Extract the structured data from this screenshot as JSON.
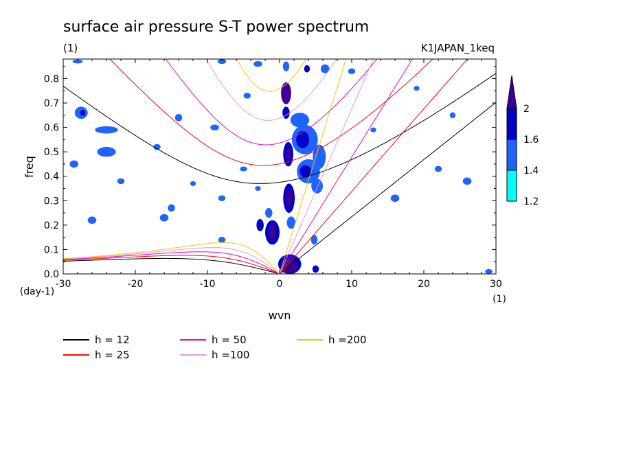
{
  "chart_data": {
    "type": "contour",
    "title": "surface air pressure S-T power spectrum",
    "subtitle_left": "(1)",
    "subtitle_right": "K1JAPAN_1keq",
    "xlabel": "wvn",
    "ylabel": "freq",
    "x_unit": "(1)",
    "y_unit": "(day-1)",
    "xlim": [
      -30,
      30
    ],
    "ylim": [
      0,
      0.88
    ],
    "x_ticks": [
      -30,
      -20,
      -10,
      0,
      10,
      20,
      30
    ],
    "x_tick_labels": [
      "-30",
      "-20",
      "-10",
      "0",
      "10",
      "20",
      "30"
    ],
    "y_ticks": [
      0.0,
      0.1,
      0.2,
      0.3,
      0.4,
      0.5,
      0.6,
      0.7,
      0.8
    ],
    "y_tick_labels": [
      "0.0",
      "0.1",
      "0.2",
      "0.3",
      "0.4",
      "0.5",
      "0.6",
      "0.7",
      "0.8"
    ],
    "colorbar": {
      "levels": [
        1.2,
        1.4,
        1.6,
        2
      ],
      "labels": [
        "1.2",
        "1.4",
        "1.6",
        "2"
      ],
      "colors": [
        "#00ffff",
        "#1e64ff",
        "#0000c8",
        "#3c0096"
      ]
    },
    "dispersion_curves": [
      {
        "label": "h = 12",
        "h": 12,
        "color": "#000000"
      },
      {
        "label": "h = 25",
        "h": 25,
        "color": "#ff0000"
      },
      {
        "label": "h = 50",
        "h": 50,
        "color": "#e600c8"
      },
      {
        "label": "h =100",
        "h": 100,
        "color": "#e696e6"
      },
      {
        "label": "h =200",
        "h": 200,
        "color": "#f0c800"
      }
    ],
    "regions": [
      {
        "x": 0.9,
        "y": 0.74,
        "rx": 0.7,
        "ry": 0.045,
        "level": 3
      },
      {
        "x": 0.9,
        "y": 0.66,
        "rx": 0.5,
        "ry": 0.025,
        "level": 2
      },
      {
        "x": 1.2,
        "y": 0.49,
        "rx": 0.7,
        "ry": 0.05,
        "level": 2
      },
      {
        "x": 1.2,
        "y": 0.49,
        "rx": 0.35,
        "ry": 0.025,
        "level": 3
      },
      {
        "x": 1.3,
        "y": 0.31,
        "rx": 0.8,
        "ry": 0.06,
        "level": 2
      },
      {
        "x": 1.3,
        "y": 0.31,
        "rx": 0.45,
        "ry": 0.035,
        "level": 3
      },
      {
        "x": 1.6,
        "y": 0.21,
        "rx": 0.6,
        "ry": 0.025,
        "level": 1
      },
      {
        "x": 1.4,
        "y": 0.04,
        "rx": 1.6,
        "ry": 0.04,
        "level": 2
      },
      {
        "x": 1.4,
        "y": 0.03,
        "rx": 1.1,
        "ry": 0.03,
        "level": 3
      },
      {
        "x": -1.0,
        "y": 0.17,
        "rx": 1.0,
        "ry": 0.05,
        "level": 2
      },
      {
        "x": -1.0,
        "y": 0.17,
        "rx": 0.55,
        "ry": 0.03,
        "level": 3
      },
      {
        "x": -2.7,
        "y": 0.2,
        "rx": 0.5,
        "ry": 0.025,
        "level": 2
      },
      {
        "x": -1.5,
        "y": 0.25,
        "rx": 0.5,
        "ry": 0.02,
        "level": 1
      },
      {
        "x": 3.5,
        "y": 0.55,
        "rx": 1.8,
        "ry": 0.06,
        "level": 1
      },
      {
        "x": 3.2,
        "y": 0.55,
        "rx": 0.9,
        "ry": 0.035,
        "level": 2
      },
      {
        "x": 4.0,
        "y": 0.42,
        "rx": 1.6,
        "ry": 0.05,
        "level": 1
      },
      {
        "x": 3.6,
        "y": 0.42,
        "rx": 0.8,
        "ry": 0.025,
        "level": 2
      },
      {
        "x": 2.8,
        "y": 0.63,
        "rx": 1.3,
        "ry": 0.03,
        "level": 1
      },
      {
        "x": 5.5,
        "y": 0.48,
        "rx": 0.9,
        "ry": 0.05,
        "level": 1
      },
      {
        "x": 5.2,
        "y": 0.36,
        "rx": 0.8,
        "ry": 0.03,
        "level": 1
      },
      {
        "x": 3.8,
        "y": 0.84,
        "rx": 0.4,
        "ry": 0.015,
        "level": 2
      },
      {
        "x": 6.3,
        "y": 0.84,
        "rx": 0.6,
        "ry": 0.018,
        "level": 1
      },
      {
        "x": 0.9,
        "y": 0.85,
        "rx": 0.45,
        "ry": 0.02,
        "level": 1
      },
      {
        "x": 4.8,
        "y": 0.14,
        "rx": 0.45,
        "ry": 0.02,
        "level": 1
      },
      {
        "x": 5.0,
        "y": 0.02,
        "rx": 0.45,
        "ry": 0.015,
        "level": 2
      },
      {
        "x": -27.5,
        "y": 0.66,
        "rx": 0.9,
        "ry": 0.025,
        "level": 1
      },
      {
        "x": -27.3,
        "y": 0.66,
        "rx": 0.35,
        "ry": 0.012,
        "level": 2
      },
      {
        "x": -28.5,
        "y": 0.45,
        "rx": 0.6,
        "ry": 0.015,
        "level": 1
      },
      {
        "x": -24.0,
        "y": 0.5,
        "rx": 1.3,
        "ry": 0.02,
        "level": 1
      },
      {
        "x": -26.0,
        "y": 0.22,
        "rx": 0.6,
        "ry": 0.015,
        "level": 1
      },
      {
        "x": -16.0,
        "y": 0.23,
        "rx": 0.6,
        "ry": 0.015,
        "level": 1
      },
      {
        "x": -24.0,
        "y": 0.59,
        "rx": 1.6,
        "ry": 0.015,
        "level": 1
      },
      {
        "x": -28.0,
        "y": 0.87,
        "rx": 0.7,
        "ry": 0.008,
        "level": 1
      },
      {
        "x": -15.0,
        "y": 0.27,
        "rx": 0.5,
        "ry": 0.015,
        "level": 1
      },
      {
        "x": -14.0,
        "y": 0.64,
        "rx": 0.5,
        "ry": 0.015,
        "level": 1
      },
      {
        "x": -8.0,
        "y": 0.31,
        "rx": 0.5,
        "ry": 0.012,
        "level": 1
      },
      {
        "x": -8.0,
        "y": 0.14,
        "rx": 0.5,
        "ry": 0.012,
        "level": 1
      },
      {
        "x": -17.0,
        "y": 0.52,
        "rx": 0.5,
        "ry": 0.012,
        "level": 1
      },
      {
        "x": -8.0,
        "y": 0.87,
        "rx": 0.6,
        "ry": 0.01,
        "level": 1
      },
      {
        "x": -3.0,
        "y": 0.86,
        "rx": 0.6,
        "ry": 0.012,
        "level": 1
      },
      {
        "x": -3.0,
        "y": 0.35,
        "rx": 0.4,
        "ry": 0.01,
        "level": 1
      },
      {
        "x": -9.0,
        "y": 0.6,
        "rx": 0.6,
        "ry": 0.012,
        "level": 1
      },
      {
        "x": -4.5,
        "y": 0.73,
        "rx": 0.5,
        "ry": 0.012,
        "level": 1
      },
      {
        "x": -5.0,
        "y": 0.43,
        "rx": 0.5,
        "ry": 0.01,
        "level": 1
      },
      {
        "x": -12.0,
        "y": 0.37,
        "rx": 0.4,
        "ry": 0.01,
        "level": 1
      },
      {
        "x": -22.0,
        "y": 0.38,
        "rx": 0.5,
        "ry": 0.012,
        "level": 1
      },
      {
        "x": 26.0,
        "y": 0.38,
        "rx": 0.6,
        "ry": 0.015,
        "level": 1
      },
      {
        "x": 16.0,
        "y": 0.31,
        "rx": 0.6,
        "ry": 0.015,
        "level": 1
      },
      {
        "x": 22.0,
        "y": 0.43,
        "rx": 0.5,
        "ry": 0.012,
        "level": 1
      },
      {
        "x": 24.0,
        "y": 0.65,
        "rx": 0.4,
        "ry": 0.012,
        "level": 1
      },
      {
        "x": 29.0,
        "y": 0.01,
        "rx": 0.5,
        "ry": 0.01,
        "level": 1
      },
      {
        "x": 19.0,
        "y": 0.76,
        "rx": 0.4,
        "ry": 0.01,
        "level": 1
      },
      {
        "x": 13.0,
        "y": 0.59,
        "rx": 0.4,
        "ry": 0.01,
        "level": 1
      },
      {
        "x": 10.0,
        "y": 0.83,
        "rx": 0.5,
        "ry": 0.012,
        "level": 1
      }
    ]
  }
}
